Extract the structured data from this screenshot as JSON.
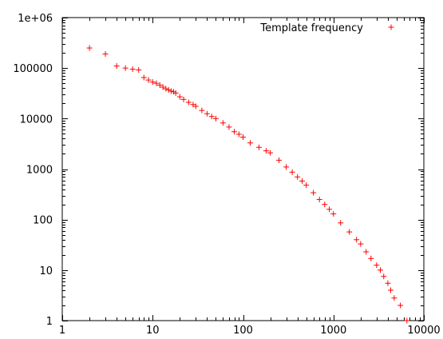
{
  "chart_data": {
    "type": "scatter",
    "title": "",
    "xlabel": "",
    "ylabel": "",
    "x_scale": "log",
    "y_scale": "log",
    "xlim": [
      1,
      10000
    ],
    "ylim": [
      1,
      1000000
    ],
    "x_tick_labels": [
      "1",
      "10",
      "100",
      "1000",
      "10000"
    ],
    "y_tick_labels": [
      "1",
      "10",
      "100",
      "1000",
      "10000",
      "100000",
      "1e+06"
    ],
    "legend_position": "top-right",
    "grid": false,
    "marker": "+",
    "marker_color": "#ff0000",
    "series": [
      {
        "name": "Template frequency",
        "x": [
          2,
          3,
          4,
          5,
          6,
          7,
          8,
          9,
          10,
          11,
          12,
          13,
          14,
          15,
          16,
          17,
          18,
          20,
          22,
          25,
          28,
          30,
          35,
          40,
          45,
          50,
          60,
          70,
          80,
          90,
          100,
          120,
          150,
          180,
          200,
          250,
          300,
          350,
          400,
          450,
          500,
          600,
          700,
          800,
          900,
          1000,
          1200,
          1500,
          1800,
          2000,
          2300,
          2600,
          3000,
          3300,
          3600,
          4000,
          4300,
          4700,
          5500,
          6500
        ],
        "y": [
          250000,
          190000,
          110000,
          100000,
          95000,
          92000,
          65000,
          58000,
          53000,
          50000,
          46000,
          42000,
          39000,
          37000,
          35000,
          34000,
          32000,
          27000,
          24000,
          21000,
          19000,
          17500,
          14500,
          12500,
          11000,
          10000,
          8200,
          6800,
          5500,
          4900,
          4300,
          3300,
          2700,
          2300,
          2100,
          1500,
          1100,
          870,
          700,
          580,
          480,
          340,
          250,
          200,
          160,
          130,
          86,
          57,
          40,
          33,
          23,
          17,
          12.5,
          10,
          7.5,
          5.5,
          4,
          2.8,
          2,
          1
        ]
      }
    ]
  }
}
